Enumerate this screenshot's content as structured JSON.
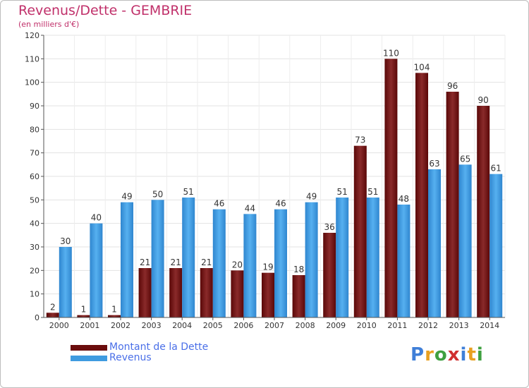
{
  "title": "Revenus/Dette - GEMBRIE",
  "subtitle": "(en milliers d'€)",
  "logo": "Proxiti",
  "colors": {
    "dette": "#7a1a1a",
    "revenus": "#3f9be0",
    "title": "#c0306a",
    "legend_text": "#4a6fe8",
    "grid": "#e6e6e6"
  },
  "legend": [
    {
      "label": "Montant de la Dette",
      "color": "#6b0d0d"
    },
    {
      "label": "Revenus",
      "color": "#3f9be0"
    }
  ],
  "chart_data": {
    "type": "bar",
    "title": "Revenus/Dette - GEMBRIE",
    "subtitle": "(en milliers d'€)",
    "categories": [
      "2000",
      "2001",
      "2002",
      "2003",
      "2004",
      "2005",
      "2006",
      "2007",
      "2008",
      "2009",
      "2010",
      "2011",
      "2012",
      "2013",
      "2014"
    ],
    "series": [
      {
        "name": "Montant de la Dette",
        "values": [
          2,
          1,
          1,
          21,
          21,
          21,
          20,
          19,
          18,
          36,
          73,
          110,
          104,
          96,
          90
        ]
      },
      {
        "name": "Revenus",
        "values": [
          30,
          40,
          49,
          50,
          51,
          46,
          44,
          46,
          49,
          51,
          51,
          48,
          63,
          65,
          61
        ]
      }
    ],
    "ylim": [
      0,
      120
    ],
    "yticks": [
      0,
      10,
      20,
      30,
      40,
      50,
      60,
      70,
      80,
      90,
      100,
      110,
      120
    ],
    "grid": true,
    "legend_position": "bottom-left"
  }
}
